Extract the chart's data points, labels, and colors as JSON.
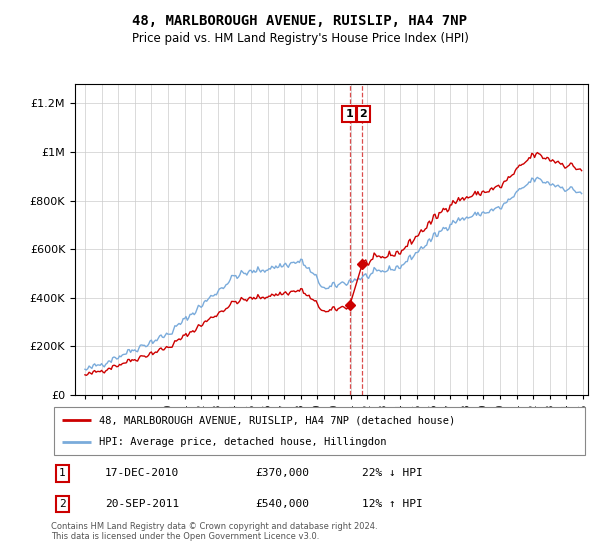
{
  "title": "48, MARLBOROUGH AVENUE, RUISLIP, HA4 7NP",
  "subtitle": "Price paid vs. HM Land Registry's House Price Index (HPI)",
  "legend_line1": "48, MARLBOROUGH AVENUE, RUISLIP, HA4 7NP (detached house)",
  "legend_line2": "HPI: Average price, detached house, Hillingdon",
  "transaction1_date": "17-DEC-2010",
  "transaction1_price": "£370,000",
  "transaction1_hpi": "22% ↓ HPI",
  "transaction2_date": "20-SEP-2011",
  "transaction2_price": "£540,000",
  "transaction2_hpi": "12% ↑ HPI",
  "footer": "Contains HM Land Registry data © Crown copyright and database right 2024.\nThis data is licensed under the Open Government Licence v3.0.",
  "property_color": "#cc0000",
  "hpi_color": "#7aabdb",
  "vline_color": "#cc0000",
  "yticks": [
    0,
    200000,
    400000,
    600000,
    800000,
    1000000,
    1200000
  ]
}
